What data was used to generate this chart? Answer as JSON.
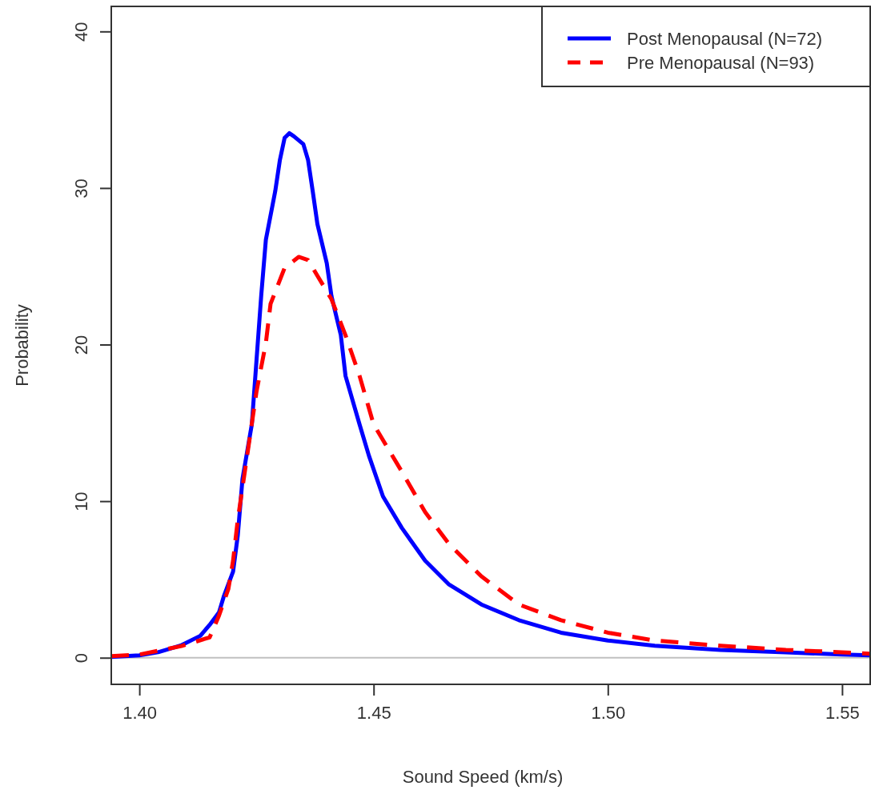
{
  "chart_data": {
    "type": "line",
    "xlabel": "Sound Speed (km/s)",
    "ylabel": "Probability",
    "xlim": [
      1.394,
      1.556
    ],
    "ylim": [
      -1.7,
      41.6
    ],
    "xticks": [
      {
        "value": 1.4,
        "label": "1.40"
      },
      1.45,
      {
        "value": 1.5,
        "label": "1.50"
      },
      1.55
    ],
    "yticks": [
      0,
      10,
      20,
      30,
      40
    ],
    "grid": false,
    "legend": "top right",
    "ref_lines": [
      {
        "axis": "y",
        "value": 0,
        "color": "#c0c0c0"
      }
    ],
    "series": [
      {
        "name": "Post Menopausal (N=72)",
        "color": "#0000ff",
        "line_style": "solid",
        "x": [
          1.394,
          1.4,
          1.404,
          1.409,
          1.413,
          1.415,
          1.417,
          1.418,
          1.42,
          1.421,
          1.422,
          1.424,
          1.425,
          1.426,
          1.427,
          1.429,
          1.43,
          1.431,
          1.432,
          1.433,
          1.435,
          1.436,
          1.437,
          1.438,
          1.44,
          1.441,
          1.443,
          1.444,
          1.447,
          1.449,
          1.452,
          1.456,
          1.461,
          1.466,
          1.473,
          1.481,
          1.49,
          1.5,
          1.51,
          1.524,
          1.538,
          1.55,
          1.556
        ],
        "values": [
          0.05,
          0.15,
          0.35,
          0.8,
          1.4,
          2.1,
          2.9,
          3.9,
          5.5,
          7.8,
          11.4,
          14.9,
          19.0,
          23.1,
          26.7,
          29.8,
          31.8,
          33.2,
          33.5,
          33.3,
          32.8,
          31.8,
          29.8,
          27.7,
          25.2,
          23.1,
          20.6,
          18.0,
          14.9,
          12.9,
          10.3,
          8.3,
          6.2,
          4.7,
          3.4,
          2.4,
          1.6,
          1.1,
          0.77,
          0.5,
          0.35,
          0.2,
          0.15
        ]
      },
      {
        "name": "Pre Menopausal (N=93)",
        "color": "#ff0000",
        "line_style": "dashed",
        "x": [
          1.394,
          1.4,
          1.409,
          1.415,
          1.417,
          1.419,
          1.42,
          1.421,
          1.423,
          1.425,
          1.427,
          1.428,
          1.431,
          1.434,
          1.436,
          1.438,
          1.441,
          1.444,
          1.447,
          1.45,
          1.456,
          1.461,
          1.466,
          1.473,
          1.481,
          1.49,
          1.5,
          1.51,
          1.524,
          1.538,
          1.55,
          1.556
        ],
        "values": [
          0.1,
          0.2,
          0.75,
          1.3,
          2.7,
          4.4,
          6.2,
          8.8,
          12.9,
          17.0,
          20.1,
          22.6,
          24.9,
          25.6,
          25.4,
          24.4,
          22.9,
          20.6,
          18.0,
          14.9,
          11.9,
          9.3,
          7.3,
          5.2,
          3.4,
          2.4,
          1.6,
          1.1,
          0.77,
          0.5,
          0.35,
          0.25
        ]
      }
    ]
  }
}
